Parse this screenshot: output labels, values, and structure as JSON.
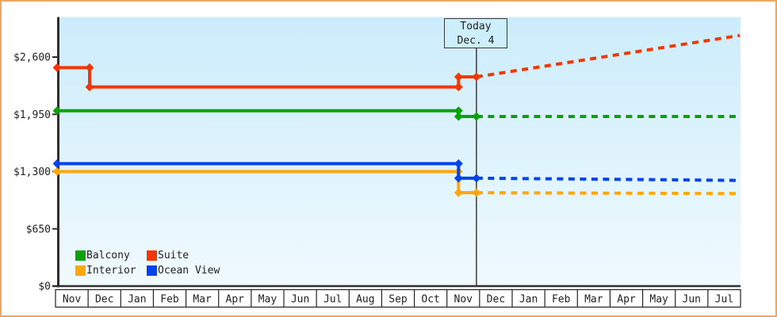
{
  "page": {
    "border_color": "#eda75f",
    "background_color": "#ffffff"
  },
  "chart_data": {
    "type": "line",
    "title": "",
    "currency": "USD",
    "plot_background": {
      "top_color": "#ccecfb",
      "bottom_color": "#f0fafe"
    },
    "y_axis": {
      "ticks": [
        {
          "label": "$0",
          "value": 0
        },
        {
          "label": "$650",
          "value": 650
        },
        {
          "label": "$1,300",
          "value": 1300
        },
        {
          "label": "$1,950",
          "value": 1950
        },
        {
          "label": "$2,600",
          "value": 2600
        }
      ],
      "range": [
        0,
        3050
      ]
    },
    "x_axis": {
      "months": [
        "Nov",
        "Dec",
        "Jan",
        "Feb",
        "Mar",
        "Apr",
        "May",
        "Jun",
        "Jul",
        "Aug",
        "Sep",
        "Oct",
        "Nov",
        "Dec",
        "Jan",
        "Feb",
        "Mar",
        "Apr",
        "May",
        "Jun",
        "Jul"
      ]
    },
    "today": {
      "label_line1": "Today",
      "label_line2": "Dec. 4",
      "month_index": 12.9
    },
    "series": [
      {
        "name": "Interior",
        "color": "#ffa60a",
        "solid": [
          [
            0,
            1300
          ],
          [
            12.35,
            1300
          ],
          [
            12.35,
            1060
          ],
          [
            12.9,
            1060
          ]
        ],
        "dotted": [
          [
            12.9,
            1060
          ],
          [
            21,
            1050
          ]
        ]
      },
      {
        "name": "Ocean View",
        "color": "#0443ec",
        "solid": [
          [
            0,
            1390
          ],
          [
            12.35,
            1390
          ],
          [
            12.35,
            1225
          ],
          [
            12.9,
            1225
          ]
        ],
        "dotted": [
          [
            12.9,
            1225
          ],
          [
            21,
            1200
          ]
        ]
      },
      {
        "name": "Balcony",
        "color": "#0ca00c",
        "solid": [
          [
            0,
            1990
          ],
          [
            12.35,
            1990
          ],
          [
            12.35,
            1925
          ],
          [
            12.9,
            1925
          ]
        ],
        "dotted": [
          [
            12.9,
            1925
          ],
          [
            21,
            1925
          ]
        ]
      },
      {
        "name": "Suite",
        "color": "#f23705",
        "solid": [
          [
            0,
            2480
          ],
          [
            1.0,
            2480
          ],
          [
            1.0,
            2260
          ],
          [
            12.35,
            2260
          ],
          [
            12.35,
            2375
          ],
          [
            12.9,
            2375
          ]
        ],
        "dotted": [
          [
            12.9,
            2375
          ],
          [
            21,
            2845
          ]
        ]
      }
    ],
    "legend": [
      {
        "label": "Balcony",
        "color": "#0ca00c"
      },
      {
        "label": "Suite",
        "color": "#f23705"
      },
      {
        "label": "Interior",
        "color": "#ffa60a"
      },
      {
        "label": "Ocean View",
        "color": "#0443ec"
      }
    ]
  }
}
